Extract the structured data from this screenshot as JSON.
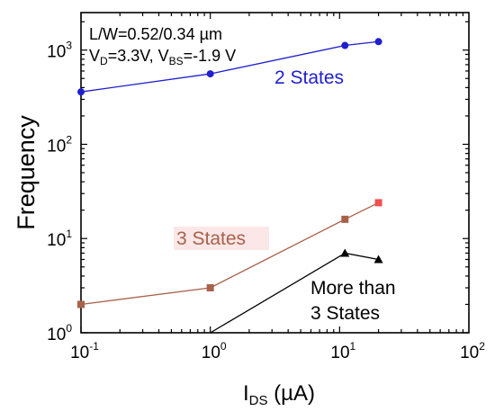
{
  "chart_data": {
    "type": "line",
    "title": "",
    "xlabel": "I",
    "xlabel_sub": "DS",
    "xlabel_unit": " (µA)",
    "ylabel": "Frequency",
    "xscale": "log",
    "yscale": "log",
    "xlim": [
      0.1,
      100
    ],
    "ylim": [
      1,
      2500
    ],
    "grid": false,
    "x_ticks": [
      {
        "base": "10",
        "exp": "-1",
        "value": 0.1
      },
      {
        "base": "10",
        "exp": "0",
        "value": 1
      },
      {
        "base": "10",
        "exp": "1",
        "value": 10
      },
      {
        "base": "10",
        "exp": "2",
        "value": 100
      }
    ],
    "y_ticks": [
      {
        "base": "10",
        "exp": "0",
        "value": 1
      },
      {
        "base": "10",
        "exp": "1",
        "value": 10
      },
      {
        "base": "10",
        "exp": "2",
        "value": 100
      },
      {
        "base": "10",
        "exp": "3",
        "value": 1000
      }
    ],
    "annotation": {
      "line1": "L/W=0.52/0.34 µm",
      "line2_a": "V",
      "line2_a_sub": "D",
      "line2_b": "=3.3V, V",
      "line2_b_sub": "BS",
      "line2_c": "=-1.9 V"
    },
    "series": [
      {
        "label": "2 States",
        "color": "#1f1fcf",
        "marker": "circle",
        "x": [
          0.1,
          1,
          11,
          20
        ],
        "y": [
          360,
          560,
          1120,
          1230
        ]
      },
      {
        "label": "3 States",
        "color": "#a8614a",
        "marker_color": "#f05050",
        "marker": "square",
        "x": [
          0.1,
          1,
          11,
          20
        ],
        "y": [
          2,
          3,
          16,
          24
        ]
      },
      {
        "label_line1": "More than",
        "label_line2": "3 States",
        "color": "#000000",
        "marker": "triangle",
        "x": [
          1,
          11,
          20
        ],
        "y": [
          1,
          7,
          6
        ]
      }
    ]
  }
}
